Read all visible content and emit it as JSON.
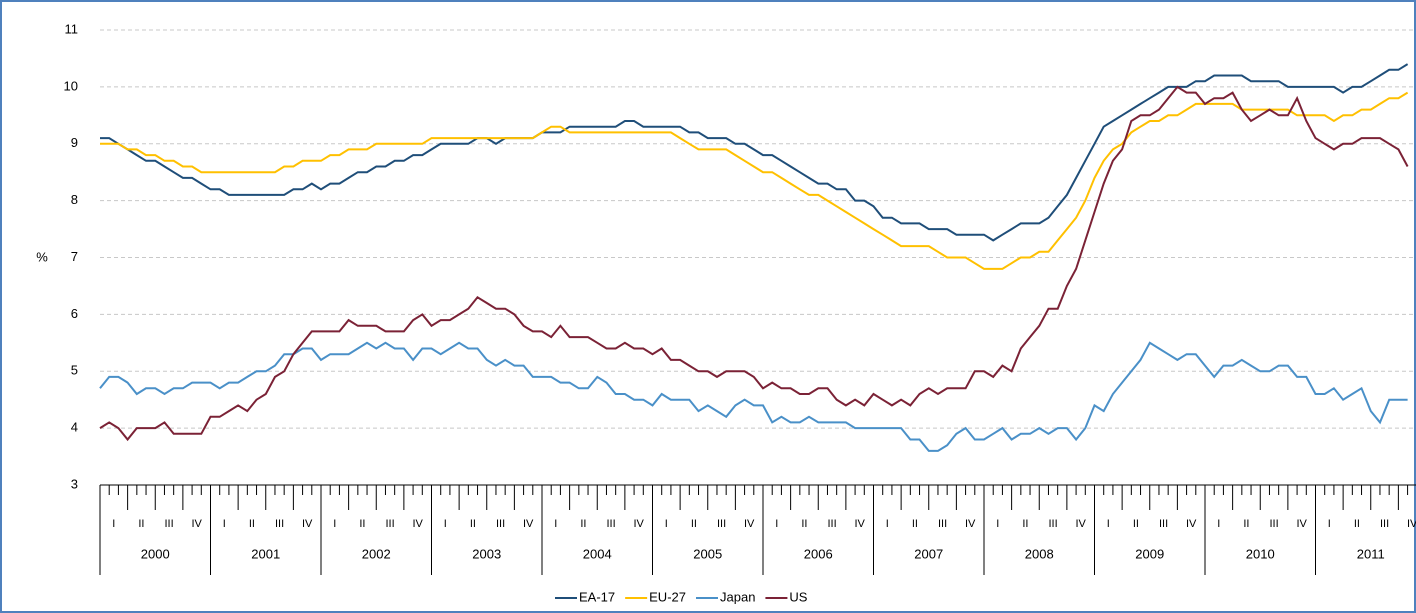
{
  "chart_data": {
    "type": "line",
    "ylabel": "%",
    "years": [
      "2000",
      "2001",
      "2002",
      "2003",
      "2004",
      "2005",
      "2006",
      "2007",
      "2008",
      "2009",
      "2010",
      "2011"
    ],
    "quarters": [
      "I",
      "II",
      "III",
      "IV"
    ],
    "ylim": [
      3,
      11
    ],
    "yticks": [
      3,
      4,
      5,
      6,
      7,
      8,
      9,
      10,
      11
    ],
    "grid": true,
    "series": [
      {
        "name": "EA-17",
        "color": "#1f4e79",
        "values": [
          9.1,
          9.1,
          9.0,
          8.9,
          8.8,
          8.7,
          8.7,
          8.6,
          8.5,
          8.4,
          8.4,
          8.3,
          8.2,
          8.2,
          8.1,
          8.1,
          8.1,
          8.1,
          8.1,
          8.1,
          8.1,
          8.2,
          8.2,
          8.3,
          8.2,
          8.3,
          8.3,
          8.4,
          8.5,
          8.5,
          8.6,
          8.6,
          8.7,
          8.7,
          8.8,
          8.8,
          8.9,
          9.0,
          9.0,
          9.0,
          9.0,
          9.1,
          9.1,
          9.0,
          9.1,
          9.1,
          9.1,
          9.1,
          9.2,
          9.2,
          9.2,
          9.3,
          9.3,
          9.3,
          9.3,
          9.3,
          9.3,
          9.4,
          9.4,
          9.3,
          9.3,
          9.3,
          9.3,
          9.3,
          9.2,
          9.2,
          9.1,
          9.1,
          9.1,
          9.0,
          9.0,
          8.9,
          8.8,
          8.8,
          8.7,
          8.6,
          8.5,
          8.4,
          8.3,
          8.3,
          8.2,
          8.2,
          8.0,
          8.0,
          7.9,
          7.7,
          7.7,
          7.6,
          7.6,
          7.6,
          7.5,
          7.5,
          7.5,
          7.4,
          7.4,
          7.4,
          7.4,
          7.3,
          7.4,
          7.5,
          7.6,
          7.6,
          7.6,
          7.7,
          7.9,
          8.1,
          8.4,
          8.7,
          9.0,
          9.3,
          9.4,
          9.5,
          9.6,
          9.7,
          9.8,
          9.9,
          10.0,
          10.0,
          10.0,
          10.1,
          10.1,
          10.2,
          10.2,
          10.2,
          10.2,
          10.1,
          10.1,
          10.1,
          10.1,
          10.0,
          10.0,
          10.0,
          10.0,
          10.0,
          10.0,
          9.9,
          10.0,
          10.0,
          10.1,
          10.2,
          10.3,
          10.3,
          10.4
        ]
      },
      {
        "name": "EU-27",
        "color": "#ffc000",
        "values": [
          9.0,
          9.0,
          9.0,
          8.9,
          8.9,
          8.8,
          8.8,
          8.7,
          8.7,
          8.6,
          8.6,
          8.5,
          8.5,
          8.5,
          8.5,
          8.5,
          8.5,
          8.5,
          8.5,
          8.5,
          8.6,
          8.6,
          8.7,
          8.7,
          8.7,
          8.8,
          8.8,
          8.9,
          8.9,
          8.9,
          9.0,
          9.0,
          9.0,
          9.0,
          9.0,
          9.0,
          9.1,
          9.1,
          9.1,
          9.1,
          9.1,
          9.1,
          9.1,
          9.1,
          9.1,
          9.1,
          9.1,
          9.1,
          9.2,
          9.3,
          9.3,
          9.2,
          9.2,
          9.2,
          9.2,
          9.2,
          9.2,
          9.2,
          9.2,
          9.2,
          9.2,
          9.2,
          9.2,
          9.1,
          9.0,
          8.9,
          8.9,
          8.9,
          8.9,
          8.8,
          8.7,
          8.6,
          8.5,
          8.5,
          8.4,
          8.3,
          8.2,
          8.1,
          8.1,
          8.0,
          7.9,
          7.8,
          7.7,
          7.6,
          7.5,
          7.4,
          7.3,
          7.2,
          7.2,
          7.2,
          7.2,
          7.1,
          7.0,
          7.0,
          7.0,
          6.9,
          6.8,
          6.8,
          6.8,
          6.9,
          7.0,
          7.0,
          7.1,
          7.1,
          7.3,
          7.5,
          7.7,
          8.0,
          8.4,
          8.7,
          8.9,
          9.0,
          9.2,
          9.3,
          9.4,
          9.4,
          9.5,
          9.5,
          9.6,
          9.7,
          9.7,
          9.7,
          9.7,
          9.7,
          9.6,
          9.6,
          9.6,
          9.6,
          9.6,
          9.6,
          9.5,
          9.5,
          9.5,
          9.5,
          9.4,
          9.5,
          9.5,
          9.6,
          9.6,
          9.7,
          9.8,
          9.8,
          9.9
        ]
      },
      {
        "name": "Japan",
        "color": "#4a90c8",
        "values": [
          4.7,
          4.9,
          4.9,
          4.8,
          4.6,
          4.7,
          4.7,
          4.6,
          4.7,
          4.7,
          4.8,
          4.8,
          4.8,
          4.7,
          4.8,
          4.8,
          4.9,
          5.0,
          5.0,
          5.1,
          5.3,
          5.3,
          5.4,
          5.4,
          5.2,
          5.3,
          5.3,
          5.3,
          5.4,
          5.5,
          5.4,
          5.5,
          5.4,
          5.4,
          5.2,
          5.4,
          5.4,
          5.3,
          5.4,
          5.5,
          5.4,
          5.4,
          5.2,
          5.1,
          5.2,
          5.1,
          5.1,
          4.9,
          4.9,
          4.9,
          4.8,
          4.8,
          4.7,
          4.7,
          4.9,
          4.8,
          4.6,
          4.6,
          4.5,
          4.5,
          4.4,
          4.6,
          4.5,
          4.5,
          4.5,
          4.3,
          4.4,
          4.3,
          4.2,
          4.4,
          4.5,
          4.4,
          4.4,
          4.1,
          4.2,
          4.1,
          4.1,
          4.2,
          4.1,
          4.1,
          4.1,
          4.1,
          4.0,
          4.0,
          4.0,
          4.0,
          4.0,
          4.0,
          3.8,
          3.8,
          3.6,
          3.6,
          3.7,
          3.9,
          4.0,
          3.8,
          3.8,
          3.9,
          4.0,
          3.8,
          3.9,
          3.9,
          4.0,
          3.9,
          4.0,
          4.0,
          3.8,
          4.0,
          4.4,
          4.3,
          4.6,
          4.8,
          5.0,
          5.2,
          5.5,
          5.4,
          5.3,
          5.2,
          5.3,
          5.3,
          5.1,
          4.9,
          5.1,
          5.1,
          5.2,
          5.1,
          5.0,
          5.0,
          5.1,
          5.1,
          4.9,
          4.9,
          4.6,
          4.6,
          4.7,
          4.5,
          4.6,
          4.7,
          4.3,
          4.1,
          4.5,
          4.5,
          4.5
        ]
      },
      {
        "name": "US",
        "color": "#7b2236",
        "values": [
          4.0,
          4.1,
          4.0,
          3.8,
          4.0,
          4.0,
          4.0,
          4.1,
          3.9,
          3.9,
          3.9,
          3.9,
          4.2,
          4.2,
          4.3,
          4.4,
          4.3,
          4.5,
          4.6,
          4.9,
          5.0,
          5.3,
          5.5,
          5.7,
          5.7,
          5.7,
          5.7,
          5.9,
          5.8,
          5.8,
          5.8,
          5.7,
          5.7,
          5.7,
          5.9,
          6.0,
          5.8,
          5.9,
          5.9,
          6.0,
          6.1,
          6.3,
          6.2,
          6.1,
          6.1,
          6.0,
          5.8,
          5.7,
          5.7,
          5.6,
          5.8,
          5.6,
          5.6,
          5.6,
          5.5,
          5.4,
          5.4,
          5.5,
          5.4,
          5.4,
          5.3,
          5.4,
          5.2,
          5.2,
          5.1,
          5.0,
          5.0,
          4.9,
          5.0,
          5.0,
          5.0,
          4.9,
          4.7,
          4.8,
          4.7,
          4.7,
          4.6,
          4.6,
          4.7,
          4.7,
          4.5,
          4.4,
          4.5,
          4.4,
          4.6,
          4.5,
          4.4,
          4.5,
          4.4,
          4.6,
          4.7,
          4.6,
          4.7,
          4.7,
          4.7,
          5.0,
          5.0,
          4.9,
          5.1,
          5.0,
          5.4,
          5.6,
          5.8,
          6.1,
          6.1,
          6.5,
          6.8,
          7.3,
          7.8,
          8.3,
          8.7,
          8.9,
          9.4,
          9.5,
          9.5,
          9.6,
          9.8,
          10.0,
          9.9,
          9.9,
          9.7,
          9.8,
          9.8,
          9.9,
          9.6,
          9.4,
          9.5,
          9.6,
          9.5,
          9.5,
          9.8,
          9.4,
          9.1,
          9.0,
          8.9,
          9.0,
          9.0,
          9.1,
          9.1,
          9.1,
          9.0,
          8.9,
          8.6
        ]
      }
    ]
  }
}
